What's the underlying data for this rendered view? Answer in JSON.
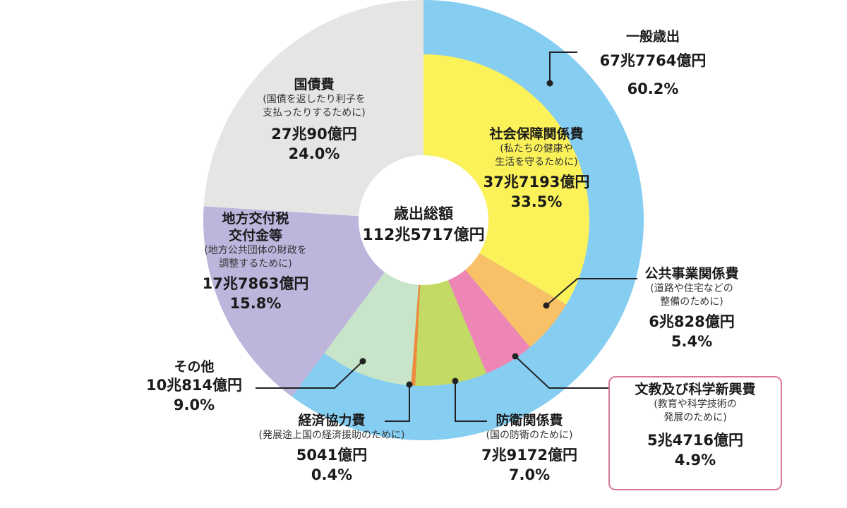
{
  "chart_data": {
    "type": "pie",
    "center_title": "歳出総額",
    "center_total": "112兆5717億円",
    "outer": {
      "name": "一般歳出",
      "amount": "67兆7764億円",
      "percent": "60.2%",
      "value": 60.2,
      "color": "#86cdf2"
    },
    "slices": [
      {
        "key": "shakai",
        "name": "社会保障関係費",
        "desc": [
          "(私たちの健康や",
          "生活を守るために)"
        ],
        "amount": "37兆7193億円",
        "percent": "33.5%",
        "value": 33.5,
        "color": "#fbf25a",
        "general": true
      },
      {
        "key": "koukyou",
        "name": "公共事業関係費",
        "desc": [
          "(道路や住宅などの",
          "整備のために)"
        ],
        "amount": "6兆828億円",
        "percent": "5.4%",
        "value": 5.4,
        "color": "#f8c168",
        "general": true
      },
      {
        "key": "bunkyou",
        "name": "文教及び科学新興費",
        "desc": [
          "(教育や科学技術の",
          "発展のために)"
        ],
        "amount": "5兆4716億円",
        "percent": "4.9%",
        "value": 4.9,
        "color": "#ed86b4",
        "general": true
      },
      {
        "key": "bouei",
        "name": "防衛関係費",
        "desc": [
          "(国の防衛のために)"
        ],
        "amount": "7兆9172億円",
        "percent": "7.0%",
        "value": 7.0,
        "color": "#c3db64",
        "general": true
      },
      {
        "key": "keizai",
        "name": "経済協力費",
        "desc": [
          "(発展途上国の経済援助のために)"
        ],
        "amount": "5041億円",
        "percent": "0.4%",
        "value": 0.4,
        "color": "#ee8a3c",
        "general": true
      },
      {
        "key": "sonota",
        "name": "その他",
        "desc": [],
        "amount": "10兆814億円",
        "percent": "9.0%",
        "value": 9.0,
        "color": "#c8e5c9",
        "general": true
      },
      {
        "key": "chihou",
        "name": "地方交付税\n交付金等",
        "desc": [
          "(地方公共団体の財政を",
          "調整するために)"
        ],
        "amount": "17兆7863億円",
        "percent": "15.8%",
        "value": 15.8,
        "color": "#beb5dd",
        "general": false
      },
      {
        "key": "kokusai",
        "name": "国債費",
        "desc": [
          "(国債を返したり利子を",
          "支払ったりするために)"
        ],
        "amount": "27兆90億円",
        "percent": "24.0%",
        "value": 24.0,
        "color": "#e7e5e4",
        "general": false
      }
    ]
  },
  "colors": {
    "line": "#222222",
    "highlight_box": "#d9789b",
    "center_fill": "#ffffff"
  }
}
